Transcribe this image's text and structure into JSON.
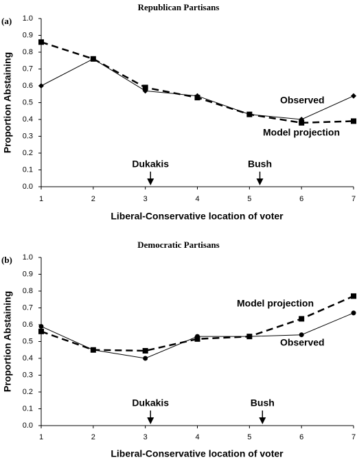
{
  "chart_data": [
    {
      "type": "line",
      "panel_label": "(a)",
      "title": "Republican Partisans",
      "x": [
        1,
        2,
        3,
        4,
        5,
        6,
        7
      ],
      "xlim": [
        1,
        7
      ],
      "xticks": [
        1,
        2,
        3,
        4,
        5,
        6,
        7
      ],
      "ylim": [
        0,
        1
      ],
      "yticks": [
        {
          "value": 0,
          "label": "0.0"
        },
        {
          "value": 0.1,
          "label": "0.1"
        },
        {
          "value": 0.2,
          "label": "0.2"
        },
        {
          "value": 0.3,
          "label": "0.3"
        },
        {
          "value": 0.4,
          "label": "0.4"
        },
        {
          "value": 0.5,
          "label": "0.5"
        },
        {
          "value": 0.6,
          "label": "0.6"
        },
        {
          "value": 0.7,
          "label": "0.7"
        },
        {
          "value": 0.8,
          "label": "0.8"
        },
        {
          "value": 0.9,
          "label": "0.9"
        },
        {
          "value": 1,
          "label": "1.0"
        }
      ],
      "x_label": "Liberal-Conservative location of voter",
      "y_label": "Proportion Abstaining",
      "series": [
        {
          "name": "Observed",
          "color": "#000000",
          "marker": "diamond",
          "dashed": false,
          "values": [
            0.6,
            0.76,
            0.57,
            0.54,
            0.43,
            0.4,
            0.54
          ]
        },
        {
          "name": "Model projection",
          "color": "#000000",
          "marker": "square",
          "dashed": true,
          "values": [
            0.86,
            0.76,
            0.59,
            0.53,
            0.43,
            0.38,
            0.39
          ]
        }
      ],
      "annotations": [
        {
          "text": "Dukakis",
          "x": 3.1
        },
        {
          "text": "Bush",
          "x": 5.2
        }
      ]
    },
    {
      "type": "line",
      "panel_label": "(b)",
      "title": "Democratic Partisans",
      "x": [
        1,
        2,
        3,
        4,
        5,
        6,
        7
      ],
      "xlim": [
        1,
        7
      ],
      "xticks": [
        1,
        2,
        3,
        4,
        5,
        6,
        7
      ],
      "ylim": [
        0,
        1
      ],
      "yticks": [
        {
          "value": 0,
          "label": "0.0"
        },
        {
          "value": 0.1,
          "label": "0.1"
        },
        {
          "value": 0.2,
          "label": "0.2"
        },
        {
          "value": 0.3,
          "label": "0.3"
        },
        {
          "value": 0.4,
          "label": "0.4"
        },
        {
          "value": 0.5,
          "label": "0.5"
        },
        {
          "value": 0.6,
          "label": "0.6"
        },
        {
          "value": 0.7,
          "label": "0.7"
        },
        {
          "value": 0.8,
          "label": "0.8"
        },
        {
          "value": 0.9,
          "label": "0.9"
        },
        {
          "value": 1,
          "label": "1.0"
        }
      ],
      "x_label": "Liberal-Conservative location of voter",
      "y_label": "Proportion Abstaining",
      "series": [
        {
          "name": "Observed",
          "color": "#000000",
          "marker": "circle",
          "dashed": false,
          "values": [
            0.59,
            0.45,
            0.4,
            0.53,
            0.53,
            0.54,
            0.67
          ]
        },
        {
          "name": "Model projection",
          "color": "#000000",
          "marker": "square",
          "dashed": true,
          "values": [
            0.56,
            0.45,
            0.445,
            0.515,
            0.53,
            0.635,
            0.77
          ]
        }
      ],
      "annotations": [
        {
          "text": "Dukakis",
          "x": 3.1
        },
        {
          "text": "Bush",
          "x": 5.25
        }
      ]
    }
  ]
}
